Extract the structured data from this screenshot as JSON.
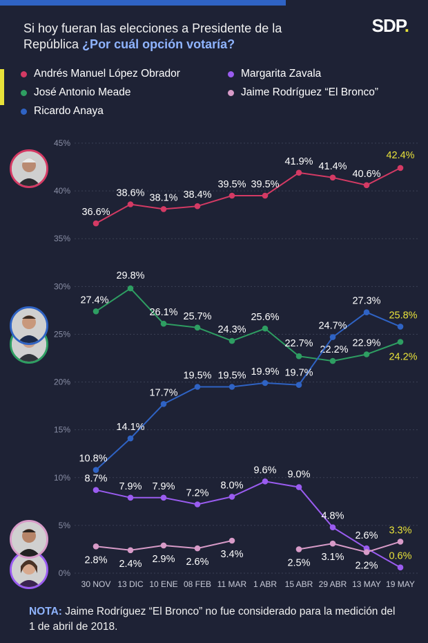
{
  "header": {
    "question_part1": "Si hoy fueran las elecciones a Presidente de la República ",
    "question_part2": "¿Por cuál opción votaría?"
  },
  "brand": {
    "logo_text": "SDP",
    "logo_dot": "."
  },
  "note": {
    "label": "NOTA:",
    "text": " Jaime Rodríguez “El Bronco” no fue considerado para la medición del 1 de abril de 2018."
  },
  "colors": {
    "background": "#1e2235",
    "accent_blue": "#2f63c4",
    "highlight_yellow": "#e8e23a",
    "grid": "#3b4055"
  },
  "avatars": [
    {
      "icon": "portrait-lopez-obrador-icon",
      "ring": "#d43a64"
    },
    {
      "icon": "portrait-anaya-icon",
      "ring": "#2f63c4"
    },
    {
      "icon": "portrait-meade-icon",
      "ring": "#2e9e62"
    },
    {
      "icon": "portrait-bronco-icon",
      "ring": "#d89bc8"
    },
    {
      "icon": "portrait-zavala-icon",
      "ring": "#9a5cf0"
    }
  ],
  "chart_data": {
    "type": "line",
    "categories": [
      "30 NOV",
      "13 DIC",
      "10 ENE",
      "08 FEB",
      "11 MAR",
      "1 ABR",
      "15 ABR",
      "29 ABR",
      "13 MAY",
      "19 MAY"
    ],
    "ylim": [
      0,
      45
    ],
    "yticks": [
      "0%",
      "5%",
      "10%",
      "15%",
      "20%",
      "25%",
      "30%",
      "35%",
      "40%",
      "45%"
    ],
    "grid": true,
    "legend_position": "top",
    "series": [
      {
        "name": "Andrés Manuel López Obrador",
        "color": "#d43a64",
        "values": [
          36.6,
          38.6,
          38.1,
          38.4,
          39.5,
          39.5,
          41.9,
          41.4,
          40.6,
          42.4
        ],
        "labels": [
          "36.6%",
          "38.6%",
          "38.1%",
          "38.4%",
          "39.5%",
          "39.5%",
          "41.9%",
          "41.4%",
          "40.6%",
          "42.4%"
        ]
      },
      {
        "name": "José Antonio Meade",
        "color": "#2e9e62",
        "values": [
          27.4,
          29.8,
          26.1,
          25.7,
          24.3,
          25.6,
          22.7,
          22.2,
          22.9,
          24.2
        ],
        "labels": [
          "27.4%",
          "29.8%",
          "26.1%",
          "25.7%",
          "24.3%",
          "25.6%",
          "22.7%",
          "22.2%",
          "22.9%",
          "24.2%"
        ]
      },
      {
        "name": "Ricardo Anaya",
        "color": "#2f63c4",
        "values": [
          10.8,
          14.1,
          17.7,
          19.5,
          19.5,
          19.9,
          19.7,
          24.7,
          27.3,
          25.8
        ],
        "labels": [
          "10.8%",
          "14.1%",
          "17.7%",
          "19.5%",
          "19.5%",
          "19.9%",
          "19.7%",
          "24.7%",
          "27.3%",
          "25.8%"
        ]
      },
      {
        "name": "Margarita Zavala",
        "color": "#9a5cf0",
        "values": [
          8.7,
          7.9,
          7.9,
          7.2,
          8.0,
          9.6,
          9.0,
          4.8,
          2.6,
          0.6
        ],
        "labels": [
          "8.7%",
          "7.9%",
          "7.9%",
          "7.2%",
          "8.0%",
          "9.6%",
          "9.0%",
          "4.8%",
          "2.6%",
          "0.6%"
        ]
      },
      {
        "name": "Jaime Rodríguez “El Bronco”",
        "color": "#d89bc8",
        "values": [
          2.8,
          2.4,
          2.9,
          2.6,
          3.4,
          null,
          2.5,
          3.1,
          2.2,
          3.3
        ],
        "labels": [
          "2.8%",
          "2.4%",
          "2.9%",
          "2.6%",
          "3.4%",
          "",
          "2.5%",
          "3.1%",
          "2.2%",
          "3.3%"
        ]
      }
    ]
  }
}
